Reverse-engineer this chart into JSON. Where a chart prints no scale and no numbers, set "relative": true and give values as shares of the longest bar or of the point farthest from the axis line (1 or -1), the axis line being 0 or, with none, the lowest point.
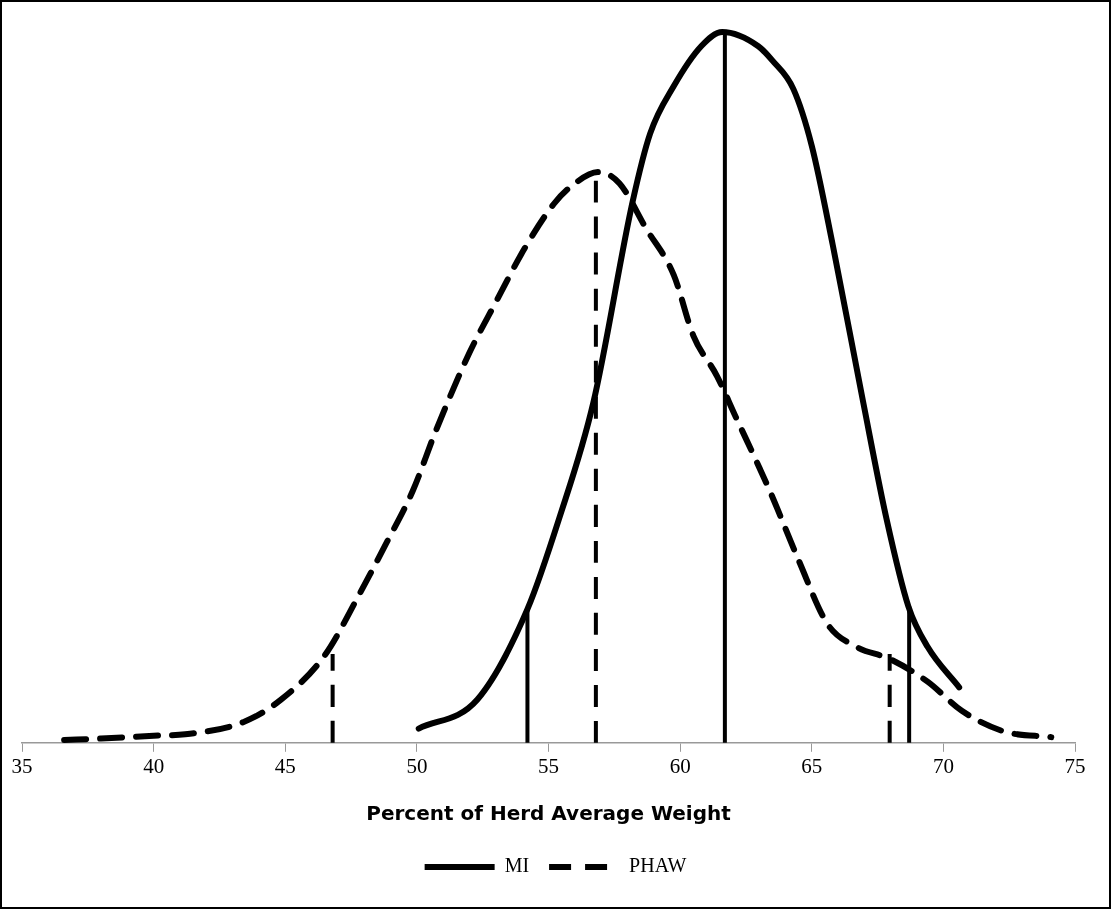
{
  "chart_data": {
    "type": "line",
    "relative": true,
    "xlabel": "Percent of Herd Average Weight",
    "xlim": [
      35,
      75
    ],
    "xticks": [
      35,
      40,
      45,
      50,
      55,
      60,
      65,
      70,
      75
    ],
    "grid": false,
    "legend": "bottom",
    "marker": "none",
    "series": [
      {
        "name": "MI",
        "color": "#000000",
        "line_style": "solid",
        "x": [
          50.07,
          52.3,
          54.2,
          55.4,
          56.7,
          58.2,
          58.86,
          59.76,
          60.8,
          61.6,
          62.97,
          63.5,
          64.3,
          65.0,
          65.8,
          66.96,
          67.84,
          68.67,
          69.4,
          70.6
        ],
        "values": [
          0.02,
          0.061,
          0.188,
          0.315,
          0.478,
          0.762,
          0.857,
          0.924,
          0.98,
          1,
          0.98,
          0.96,
          0.92,
          0.84,
          0.7,
          0.478,
          0.315,
          0.192,
          0.135,
          0.078
        ]
      },
      {
        "name": "PHAW",
        "color": "#000000",
        "line_style": "dashed",
        "x": [
          36.6,
          38,
          40,
          41.2,
          43.4,
          44.85,
          46.5,
          47.8,
          48.8,
          49.85,
          50.7,
          52.0,
          53.0,
          54.1,
          55.2,
          55.9,
          56.9,
          57.7,
          58.7,
          59.76,
          60.5,
          61.4,
          62.07,
          63.4,
          64.5,
          65.6,
          66.7,
          67.96,
          69.4,
          70.7,
          72.3,
          74.1
        ],
        "values": [
          0.004,
          0.006,
          0.01,
          0.012,
          0.029,
          0.061,
          0.123,
          0.208,
          0.278,
          0.355,
          0.437,
          0.549,
          0.62,
          0.696,
          0.758,
          0.784,
          0.803,
          0.787,
          0.724,
          0.658,
          0.573,
          0.516,
          0.462,
          0.355,
          0.257,
          0.167,
          0.135,
          0.118,
          0.086,
          0.045,
          0.016,
          0.008
        ]
      },
      {
        "color": "#000000",
        "line_style": "solid",
        "x": [
          54.2,
          54.2
        ],
        "values": [
          0,
          0.188
        ]
      },
      {
        "color": "#000000",
        "line_style": "solid",
        "x": [
          61.7,
          61.7
        ],
        "values": [
          0,
          1
        ]
      },
      {
        "color": "#000000",
        "line_style": "solid",
        "x": [
          68.7,
          68.7
        ],
        "values": [
          0,
          0.192
        ]
      },
      {
        "color": "#000000",
        "line_style": "dashed",
        "x": [
          46.8,
          46.8
        ],
        "values": [
          0,
          0.125
        ]
      },
      {
        "color": "#000000",
        "line_style": "dashed",
        "x": [
          56.8,
          56.8
        ],
        "values": [
          0,
          0.8
        ]
      },
      {
        "color": "#000000",
        "line_style": "dashed",
        "x": [
          67.96,
          67.96
        ],
        "values": [
          0,
          0.125
        ]
      }
    ]
  }
}
